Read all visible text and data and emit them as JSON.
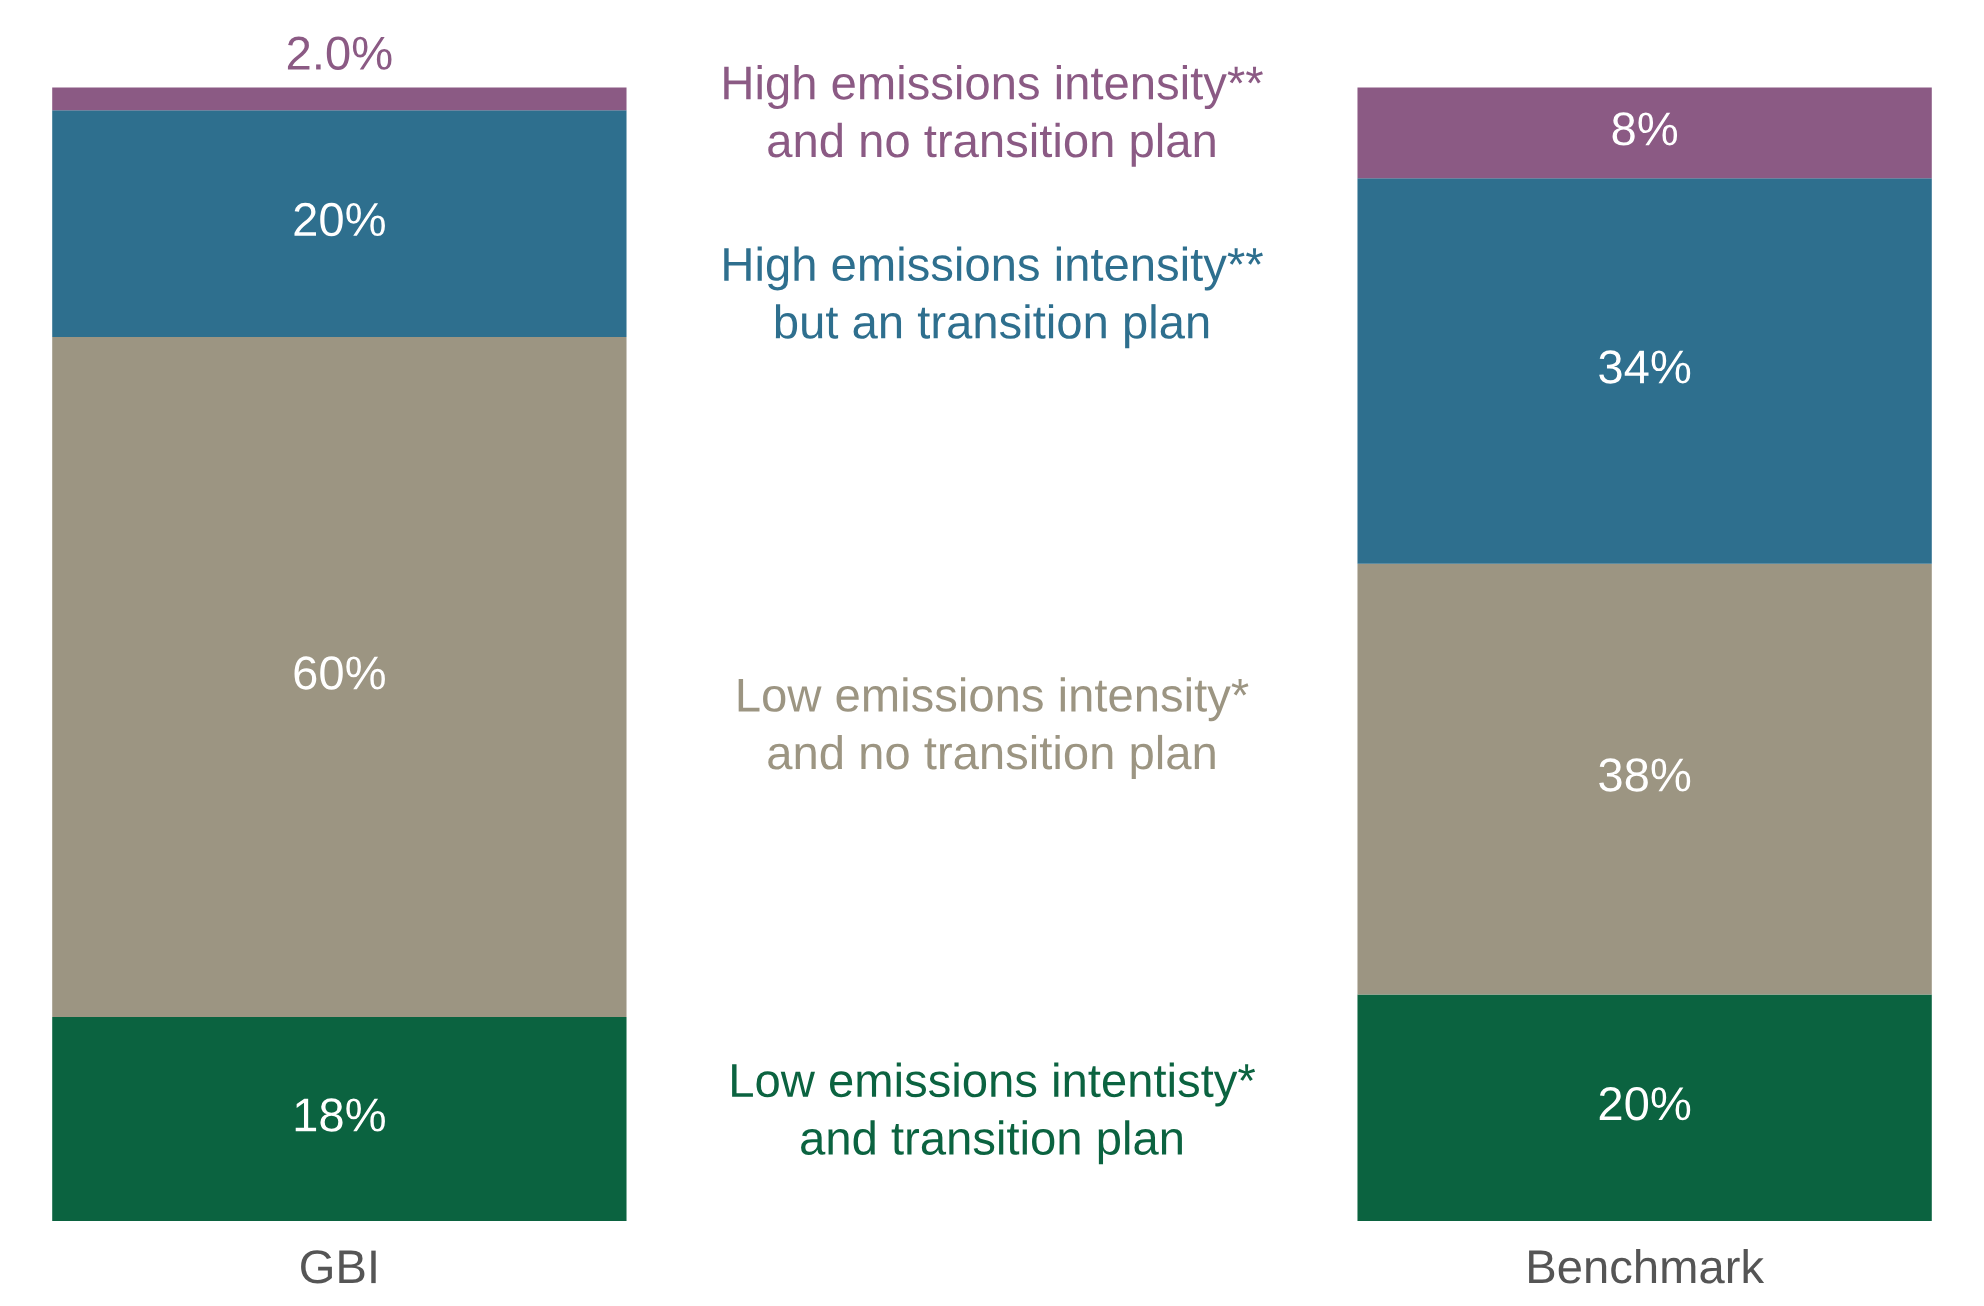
{
  "chart_data": {
    "type": "bar",
    "stacked": true,
    "categories": [
      "GBI",
      "Benchmark"
    ],
    "series": [
      {
        "name": "Low emissions intentisty*\nand transition plan",
        "color": "#0b6340",
        "values": [
          18,
          20
        ],
        "value_labels": [
          "18%",
          "20%"
        ]
      },
      {
        "name": "Low emissions intensity*\nand no transition plan",
        "color": "#9c9582",
        "values": [
          60,
          38
        ],
        "value_labels": [
          "60%",
          "38%"
        ]
      },
      {
        "name": "High emissions intensity**\nbut an transition plan",
        "color": "#2e6f8e",
        "values": [
          20,
          34
        ],
        "value_labels": [
          "20%",
          "34%"
        ]
      },
      {
        "name": "High emissions intensity**\nand no transition plan",
        "color": "#8b5a84",
        "values": [
          2.0,
          8
        ],
        "value_labels": [
          "2.0%",
          "8%"
        ]
      }
    ],
    "legend": false,
    "grid": false
  }
}
